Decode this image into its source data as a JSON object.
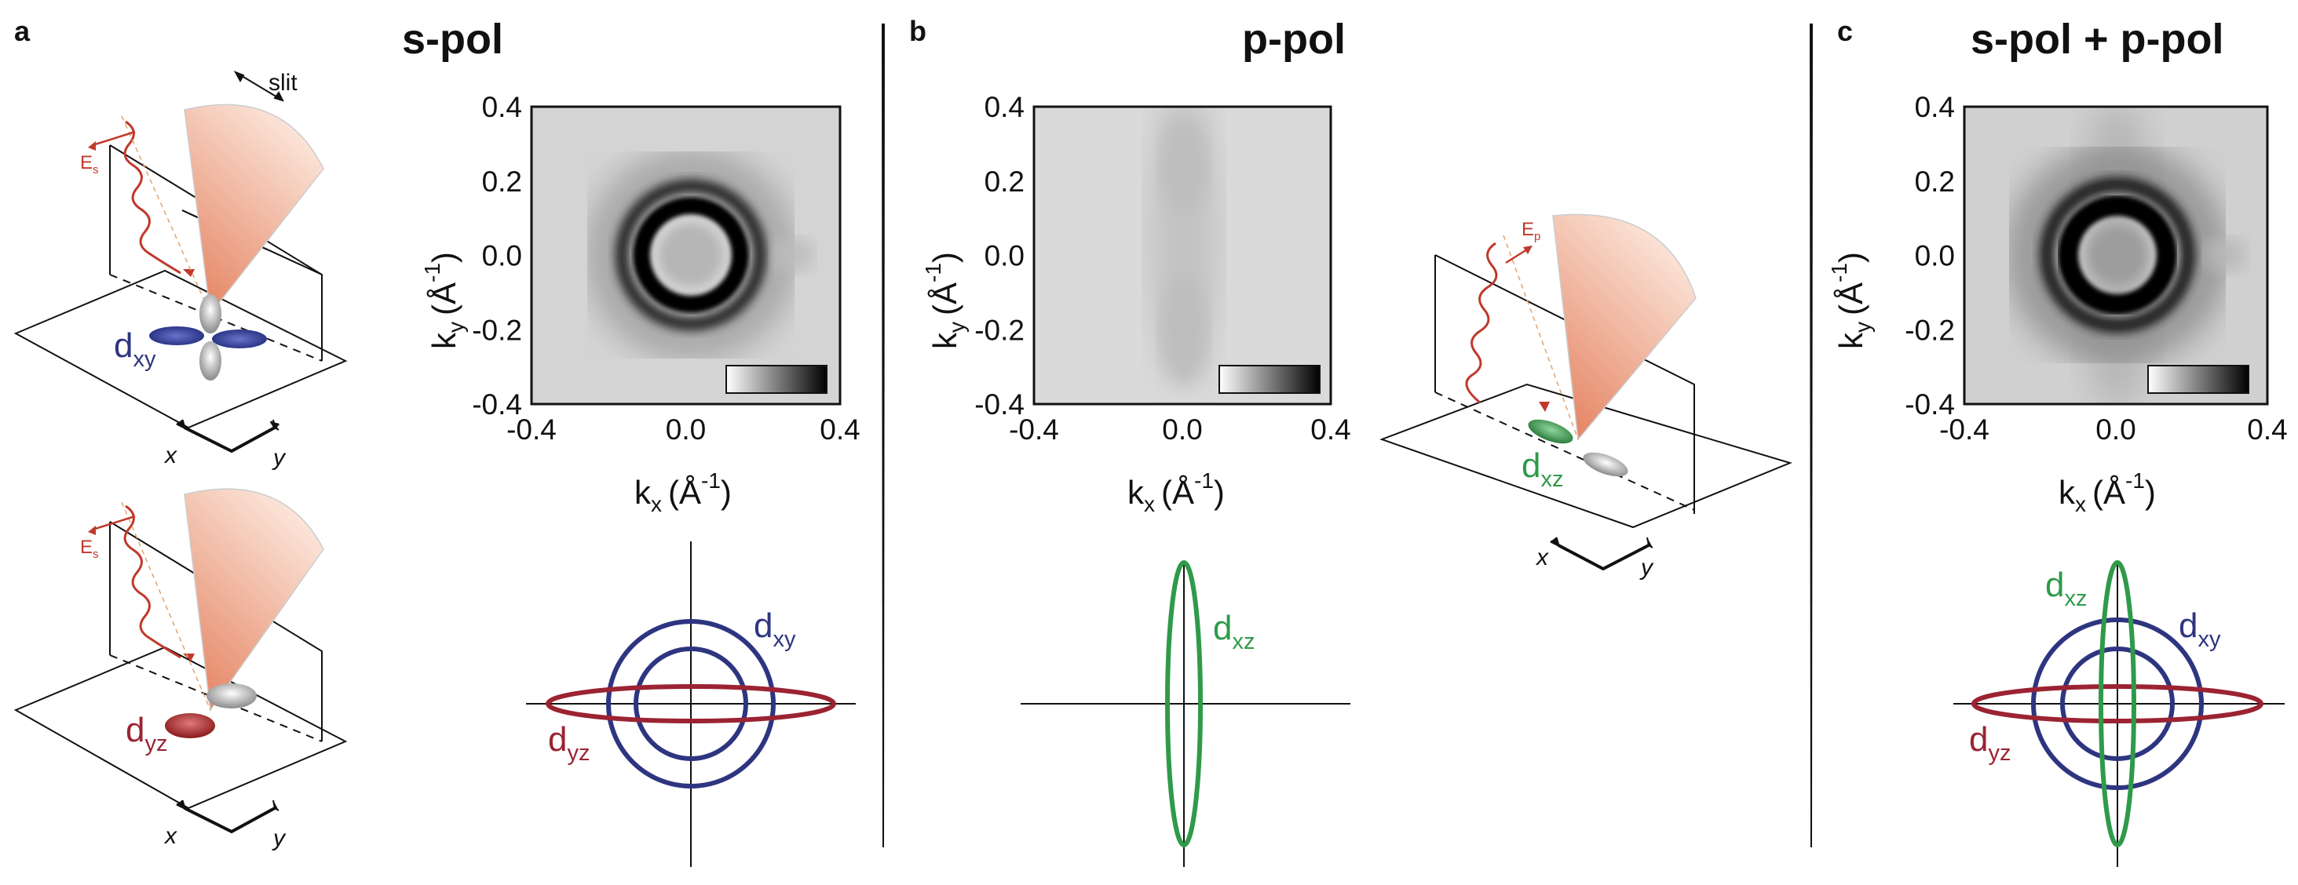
{
  "panels": [
    {
      "letter": "a",
      "title": "s-pol"
    },
    {
      "letter": "b",
      "title": "p-pol"
    },
    {
      "letter": "c",
      "title": "s-pol + p-pol"
    }
  ],
  "arpes_axes": {
    "x_label": "k",
    "x_sub": "x",
    "y_label": "k",
    "y_sub": "y",
    "unit": "(Å",
    "unit_exp": "-1",
    "unit_close": ")",
    "x_ticks": [
      "-0.4",
      "0.0",
      "0.4"
    ],
    "y_ticks": [
      "0.4",
      "0.2",
      "0.0",
      "-0.2",
      "-0.4"
    ],
    "range": [
      -0.4,
      0.4
    ]
  },
  "schematic": {
    "slit_label": "slit",
    "x_axis": "x",
    "y_axis": "y",
    "field_s": "E",
    "field_s_sub": "s",
    "field_p": "E",
    "field_p_sub": "p"
  },
  "orbitals": {
    "dxy": {
      "main": "d",
      "sub": "xy",
      "color": "#2e3580"
    },
    "dyz": {
      "main": "d",
      "sub": "yz",
      "color": "#9b2332"
    },
    "dxz": {
      "main": "d",
      "sub": "xz",
      "color": "#2f9a4a"
    }
  },
  "colors": {
    "photon": "#c0392b",
    "cone": "#e89a80",
    "frame": "#111111"
  }
}
